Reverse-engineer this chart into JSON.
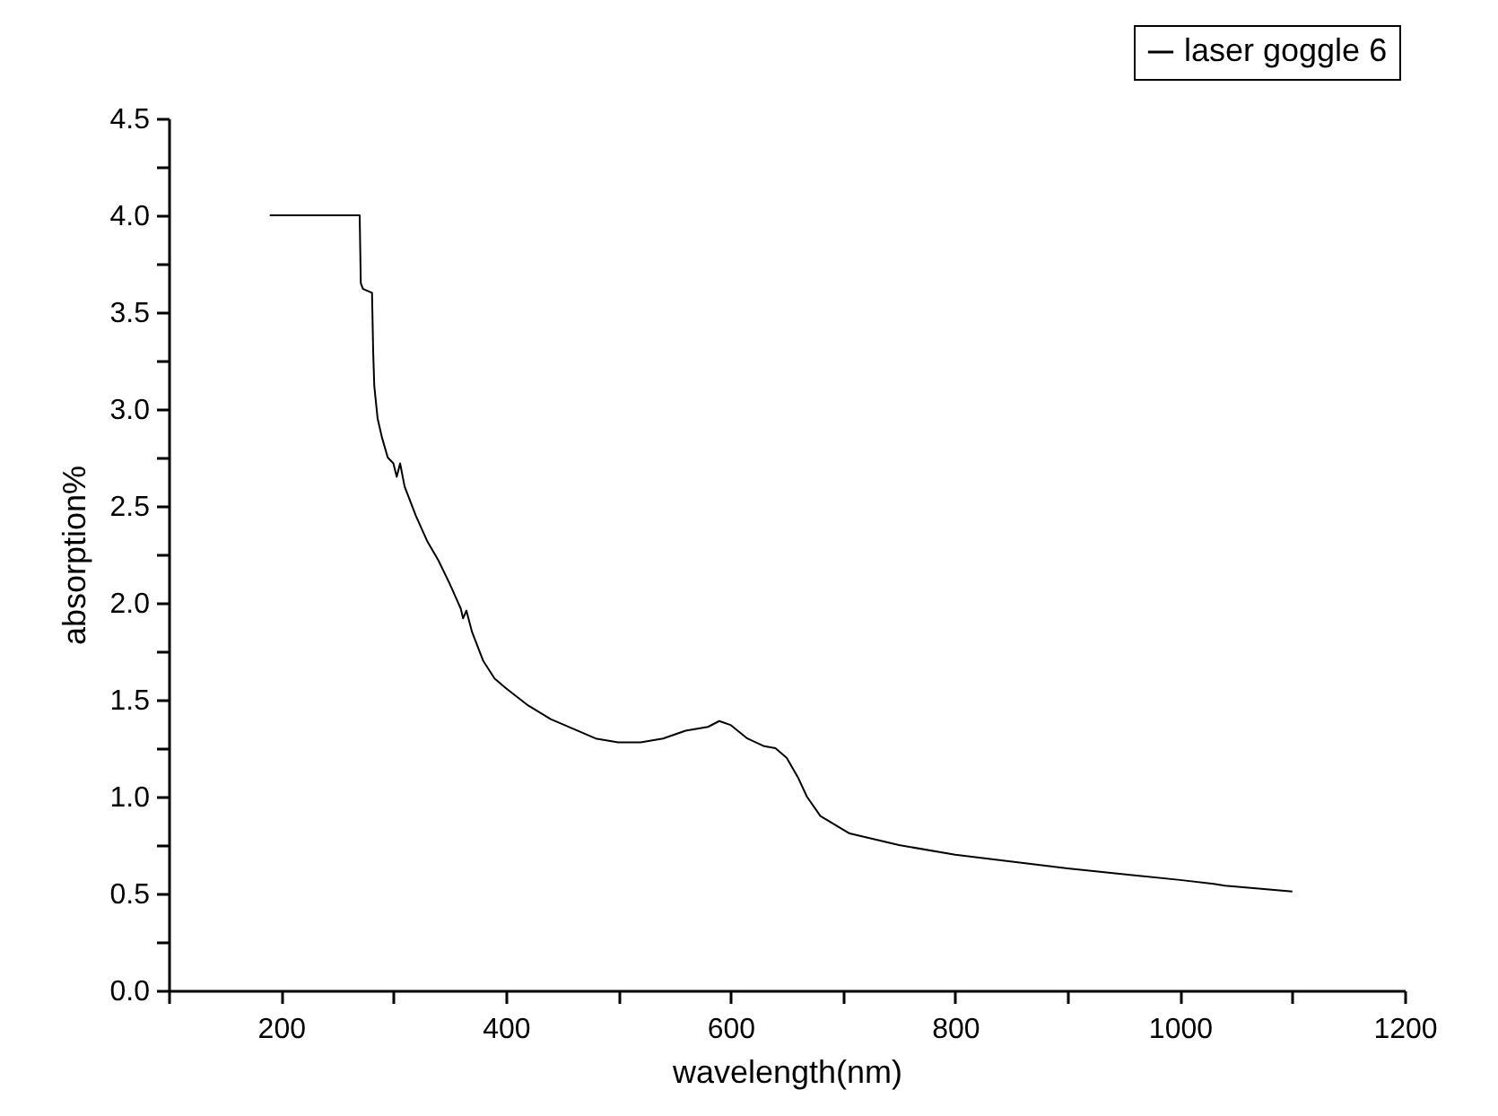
{
  "chart_data": {
    "type": "line",
    "xlabel": "wavelength(nm)",
    "ylabel": "absorption%",
    "xlim": [
      100,
      1200
    ],
    "ylim": [
      0,
      4.5
    ],
    "xticks": [
      {
        "value": 100,
        "label": null
      },
      200,
      {
        "value": 300,
        "label": null
      },
      400,
      {
        "value": 500,
        "label": null
      },
      600,
      {
        "value": 700,
        "label": null
      },
      800,
      {
        "value": 900,
        "label": null
      },
      1000,
      {
        "value": 1100,
        "label": null
      },
      1200
    ],
    "yticks": [
      {
        "value": 0,
        "label": "0.0"
      },
      {
        "value": 0.25,
        "label": null
      },
      {
        "value": 0.5,
        "label": "0.5"
      },
      {
        "value": 0.75,
        "label": null
      },
      {
        "value": 1,
        "label": "1.0"
      },
      {
        "value": 1.25,
        "label": null
      },
      {
        "value": 1.5,
        "label": "1.5"
      },
      {
        "value": 1.75,
        "label": null
      },
      {
        "value": 2,
        "label": "2.0"
      },
      {
        "value": 2.25,
        "label": null
      },
      {
        "value": 2.5,
        "label": "2.5"
      },
      {
        "value": 2.75,
        "label": null
      },
      {
        "value": 3,
        "label": "3.0"
      },
      {
        "value": 3.25,
        "label": null
      },
      {
        "value": 3.5,
        "label": "3.5"
      },
      {
        "value": 3.75,
        "label": null
      },
      {
        "value": 4,
        "label": "4.0"
      },
      {
        "value": 4.25,
        "label": null
      },
      {
        "value": 4.5,
        "label": "4.5"
      }
    ],
    "grid": false,
    "legend": "top right",
    "marker": "none",
    "line_style": "solid",
    "series": [
      {
        "name": "laser goggle 6",
        "color": "#000000",
        "x": [
          190,
          270,
          271,
          273,
          281,
          282,
          283,
          286,
          290,
          295,
          300,
          303,
          306,
          310,
          320,
          330,
          340,
          350,
          360,
          362,
          365,
          370,
          380,
          390,
          400,
          420,
          440,
          460,
          480,
          500,
          520,
          540,
          560,
          580,
          590,
          600,
          615,
          630,
          640,
          650,
          660,
          668,
          680,
          706,
          750,
          800,
          900,
          1000,
          1030,
          1040,
          1100
        ],
        "values": [
          4.0,
          4.0,
          3.65,
          3.62,
          3.6,
          3.3,
          3.12,
          2.95,
          2.85,
          2.75,
          2.72,
          2.65,
          2.72,
          2.6,
          2.45,
          2.32,
          2.22,
          2.1,
          1.97,
          1.92,
          1.96,
          1.85,
          1.7,
          1.61,
          1.56,
          1.47,
          1.4,
          1.35,
          1.3,
          1.28,
          1.28,
          1.3,
          1.34,
          1.36,
          1.39,
          1.37,
          1.3,
          1.26,
          1.25,
          1.2,
          1.1,
          1.0,
          0.9,
          0.81,
          0.75,
          0.7,
          0.63,
          0.57,
          0.55,
          0.54,
          0.51
        ]
      }
    ]
  }
}
